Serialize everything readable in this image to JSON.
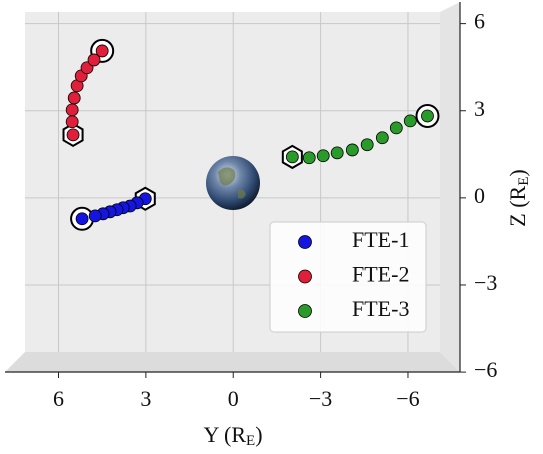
{
  "chart_data": {
    "type": "scatter",
    "xlabel": [
      "Y (R",
      "E",
      ")"
    ],
    "ylabel": [
      "Z (R",
      "E",
      ")"
    ],
    "xlim": [
      7.15,
      -7.1
    ],
    "ylim": [
      -6.1,
      6.4
    ],
    "xticks": [
      6,
      3,
      0,
      {
        "value": -3,
        "label": "−3"
      },
      {
        "value": -6,
        "label": "−6"
      }
    ],
    "yticks": [
      {
        "value": -6,
        "label": "−6"
      },
      {
        "value": -3,
        "label": "−3"
      },
      0,
      3,
      6
    ],
    "grid": true,
    "legend": "lower right",
    "series": [
      {
        "name": "FTE-1",
        "color": "#1515e0",
        "x": [
          3.02,
          3.3,
          3.54,
          3.78,
          3.99,
          4.23,
          4.47,
          4.74,
          5.19
        ],
        "values": [
          -0.03,
          -0.17,
          -0.28,
          -0.34,
          -0.41,
          -0.48,
          -0.55,
          -0.62,
          -0.72
        ]
      },
      {
        "name": "FTE-2",
        "color": "#e0203a",
        "x": [
          5.5,
          5.53,
          5.53,
          5.46,
          5.36,
          5.22,
          5.02,
          4.78,
          4.5
        ],
        "values": [
          2.17,
          2.62,
          3.03,
          3.44,
          3.86,
          4.2,
          4.48,
          4.75,
          5.06
        ]
      },
      {
        "name": "FTE-3",
        "color": "#2a9a2a",
        "x": [
          -2.03,
          -2.61,
          -3.09,
          -3.57,
          -4.09,
          -4.6,
          -5.12,
          -5.6,
          -6.08,
          -6.67
        ],
        "values": [
          1.41,
          1.38,
          1.45,
          1.55,
          1.65,
          1.83,
          2.07,
          2.41,
          2.65,
          2.82
        ]
      }
    ]
  }
}
